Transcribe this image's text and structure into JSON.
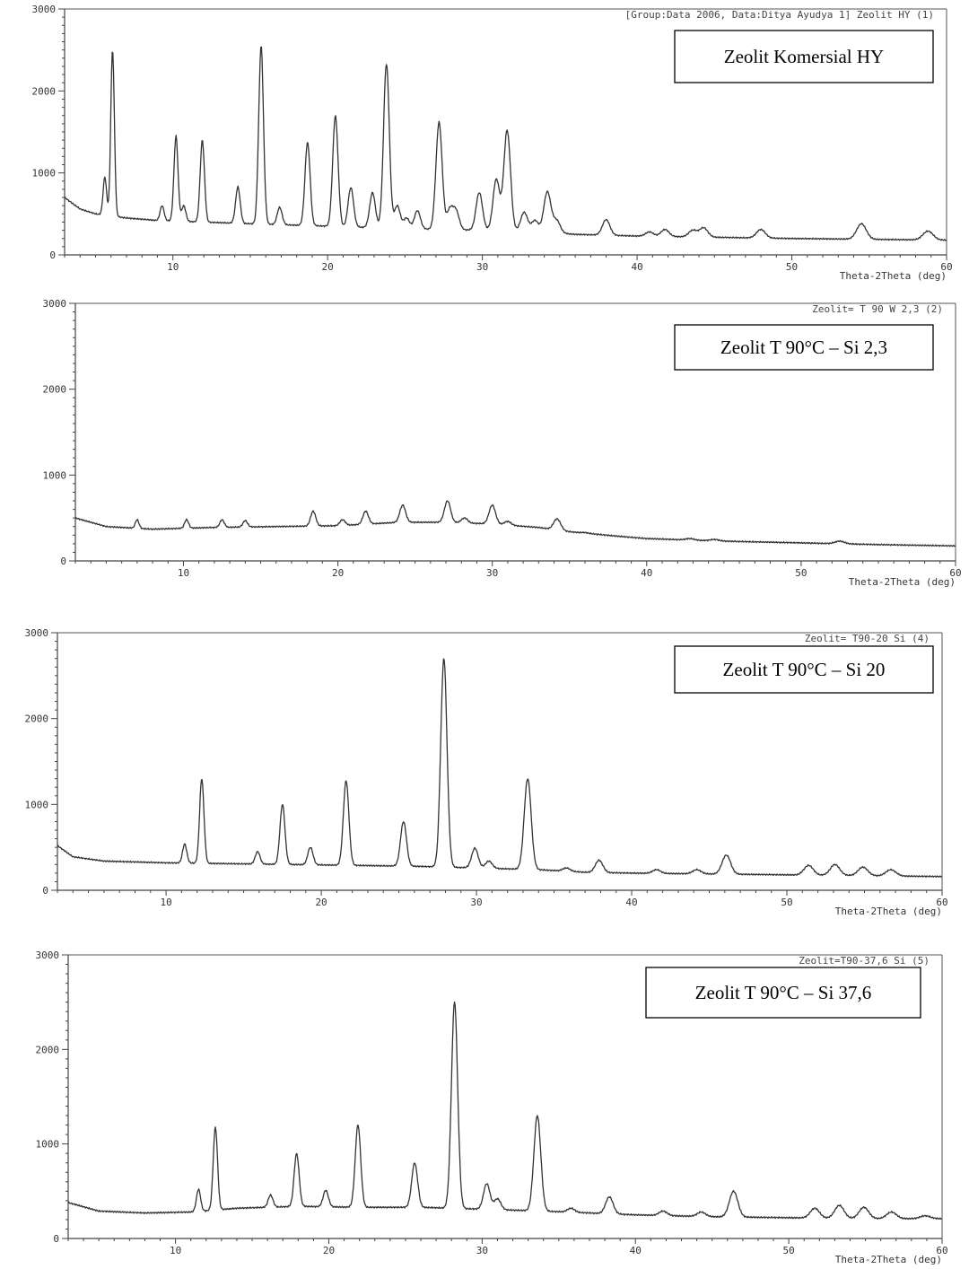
{
  "chart_data": [
    {
      "type": "line",
      "title": "[Group:Data 2006, Data:Ditya Ayudya 1] Zeolit HY (1)",
      "box_label": "Zeolit Komersial HY",
      "xlabel": "Theta-2Theta (deg)",
      "ylabel": "",
      "xlim": [
        3,
        60
      ],
      "ylim": [
        0,
        3000
      ],
      "xticks": [
        10,
        20,
        30,
        40,
        50,
        60
      ],
      "yticks": [
        0,
        1000,
        2000,
        3000
      ],
      "baseline": [
        [
          3,
          700
        ],
        [
          4,
          560
        ],
        [
          5,
          500
        ],
        [
          7,
          450
        ],
        [
          9,
          420
        ],
        [
          12,
          400
        ],
        [
          15,
          380
        ],
        [
          20,
          350
        ],
        [
          25,
          320
        ],
        [
          30,
          300
        ],
        [
          34,
          280
        ],
        [
          36,
          250
        ],
        [
          40,
          230
        ],
        [
          45,
          215
        ],
        [
          50,
          200
        ],
        [
          55,
          190
        ],
        [
          60,
          180
        ]
      ],
      "peaks": [
        [
          5.6,
          950
        ],
        [
          6.1,
          2500
        ],
        [
          9.3,
          600
        ],
        [
          10.2,
          1450
        ],
        [
          10.7,
          600
        ],
        [
          11.9,
          1400
        ],
        [
          14.2,
          830
        ],
        [
          15.7,
          2550
        ],
        [
          16.9,
          580
        ],
        [
          18.7,
          1370
        ],
        [
          20.5,
          1700
        ],
        [
          21.5,
          820
        ],
        [
          22.9,
          760
        ],
        [
          23.8,
          2330
        ],
        [
          24.5,
          600
        ],
        [
          25.1,
          450
        ],
        [
          25.8,
          540
        ],
        [
          27.2,
          1620
        ],
        [
          27.9,
          550
        ],
        [
          28.3,
          530
        ],
        [
          29.8,
          760
        ],
        [
          30.9,
          920
        ],
        [
          31.6,
          1520
        ],
        [
          32.7,
          520
        ],
        [
          33.4,
          420
        ],
        [
          34.2,
          770
        ],
        [
          34.8,
          420
        ],
        [
          38.0,
          430
        ],
        [
          40.8,
          280
        ],
        [
          41.8,
          310
        ],
        [
          43.6,
          300
        ],
        [
          44.3,
          330
        ],
        [
          48.0,
          310
        ],
        [
          54.5,
          380
        ],
        [
          58.8,
          290
        ]
      ]
    },
    {
      "type": "line",
      "title": "Zeolit= T 90 W 2,3 (2)",
      "box_label": "Zeolit T 90°C – Si 2,3",
      "xlabel": "Theta-2Theta (deg)",
      "ylabel": "",
      "xlim": [
        3,
        60
      ],
      "ylim": [
        0,
        3000
      ],
      "xticks": [
        10,
        20,
        30,
        40,
        50,
        60
      ],
      "yticks": [
        0,
        1000,
        2000,
        3000
      ],
      "baseline": [
        [
          3,
          500
        ],
        [
          5,
          400
        ],
        [
          8,
          370
        ],
        [
          12,
          390
        ],
        [
          16,
          400
        ],
        [
          20,
          410
        ],
        [
          24,
          450
        ],
        [
          27,
          450
        ],
        [
          30,
          430
        ],
        [
          33,
          390
        ],
        [
          35,
          340
        ],
        [
          38,
          290
        ],
        [
          40,
          260
        ],
        [
          45,
          230
        ],
        [
          50,
          210
        ],
        [
          55,
          190
        ],
        [
          60,
          175
        ]
      ],
      "peaks": [
        [
          7.0,
          480
        ],
        [
          10.2,
          480
        ],
        [
          12.5,
          480
        ],
        [
          14.0,
          470
        ],
        [
          18.4,
          580
        ],
        [
          20.3,
          480
        ],
        [
          21.8,
          580
        ],
        [
          24.2,
          650
        ],
        [
          27.1,
          700
        ],
        [
          28.2,
          500
        ],
        [
          30.0,
          650
        ],
        [
          31.0,
          460
        ],
        [
          34.2,
          490
        ],
        [
          36.0,
          330
        ],
        [
          42.8,
          260
        ],
        [
          44.4,
          250
        ],
        [
          52.5,
          230
        ]
      ]
    },
    {
      "type": "line",
      "title": "Zeolit= T90-20 Si (4)",
      "box_label": "Zeolit T 90°C – Si 20",
      "xlabel": "Theta-2Theta (deg)",
      "ylabel": "",
      "xlim": [
        3,
        60
      ],
      "ylim": [
        0,
        3000
      ],
      "xticks": [
        10,
        20,
        30,
        40,
        50,
        60
      ],
      "yticks": [
        0,
        1000,
        2000,
        3000
      ],
      "baseline": [
        [
          3,
          520
        ],
        [
          4,
          390
        ],
        [
          6,
          340
        ],
        [
          10,
          320
        ],
        [
          14,
          310
        ],
        [
          18,
          300
        ],
        [
          22,
          290
        ],
        [
          26,
          280
        ],
        [
          30,
          260
        ],
        [
          34,
          240
        ],
        [
          37,
          210
        ],
        [
          40,
          200
        ],
        [
          45,
          190
        ],
        [
          50,
          180
        ],
        [
          55,
          170
        ],
        [
          60,
          160
        ]
      ],
      "peaks": [
        [
          11.2,
          540
        ],
        [
          12.3,
          1300
        ],
        [
          15.9,
          450
        ],
        [
          17.5,
          1000
        ],
        [
          19.3,
          500
        ],
        [
          21.6,
          1280
        ],
        [
          25.3,
          800
        ],
        [
          27.9,
          2700
        ],
        [
          29.9,
          490
        ],
        [
          30.8,
          340
        ],
        [
          33.3,
          1300
        ],
        [
          35.8,
          260
        ],
        [
          37.9,
          350
        ],
        [
          41.6,
          240
        ],
        [
          44.2,
          240
        ],
        [
          46.1,
          410
        ],
        [
          51.4,
          290
        ],
        [
          53.1,
          300
        ],
        [
          54.9,
          270
        ],
        [
          56.7,
          240
        ]
      ]
    },
    {
      "type": "line",
      "title": "Zeolit=T90-37,6 Si (5)",
      "box_label": "Zeolit T 90°C – Si 37,6",
      "xlabel": "Theta-2Theta (deg)",
      "ylabel": "",
      "xlim": [
        3,
        60
      ],
      "ylim": [
        0,
        3000
      ],
      "xticks": [
        10,
        20,
        30,
        40,
        50,
        60
      ],
      "yticks": [
        0,
        1000,
        2000,
        3000
      ],
      "baseline": [
        [
          3,
          380
        ],
        [
          5,
          290
        ],
        [
          8,
          270
        ],
        [
          11,
          280
        ],
        [
          14,
          320
        ],
        [
          18,
          340
        ],
        [
          22,
          330
        ],
        [
          26,
          330
        ],
        [
          30,
          310
        ],
        [
          34,
          290
        ],
        [
          37,
          270
        ],
        [
          40,
          250
        ],
        [
          45,
          230
        ],
        [
          50,
          220
        ],
        [
          55,
          210
        ],
        [
          60,
          210
        ]
      ],
      "peaks": [
        [
          11.5,
          520
        ],
        [
          12.6,
          1180
        ],
        [
          16.2,
          460
        ],
        [
          17.9,
          900
        ],
        [
          19.8,
          510
        ],
        [
          21.9,
          1200
        ],
        [
          25.6,
          800
        ],
        [
          28.2,
          2500
        ],
        [
          30.3,
          580
        ],
        [
          31.0,
          420
        ],
        [
          33.6,
          1300
        ],
        [
          35.8,
          320
        ],
        [
          38.3,
          440
        ],
        [
          41.8,
          290
        ],
        [
          44.3,
          280
        ],
        [
          46.4,
          500
        ],
        [
          51.7,
          320
        ],
        [
          53.3,
          350
        ],
        [
          54.9,
          330
        ],
        [
          56.7,
          280
        ],
        [
          58.9,
          240
        ]
      ]
    }
  ]
}
